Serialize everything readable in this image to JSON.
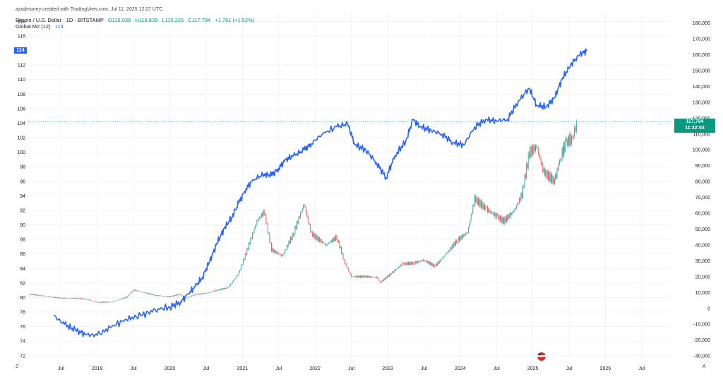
{
  "header": {
    "credit": "azadmoney created with TradingView.com, Jul 11, 2025 12:27 UTC",
    "symbol": "Bitcoin / U.S. Dollar · 1D · BITSTAMP",
    "open": "O116,038",
    "high": "H118,839",
    "low": "L115,226",
    "close": "C117,794",
    "change": "+1,761 (+1.52%)",
    "indicator": "Global M2 (12)",
    "indicator_value": "114"
  },
  "badges": {
    "m2_current": "114",
    "price_current": "117,794",
    "countdown": "11:32:03"
  },
  "corner_labels": {
    "left": "Z",
    "right": "A"
  },
  "colors": {
    "m2_line": "#2962ff",
    "candle_up": "#26a69a",
    "candle_down": "#ef5350",
    "grid": "#f0f3fa",
    "price_line": "#089981"
  },
  "chart_data": {
    "type": "line",
    "grid": true,
    "legend": "top-left",
    "x_axis": {
      "ticks": [
        "Jul",
        "2019",
        "Jul",
        "2020",
        "Jul",
        "2021",
        "Jul",
        "2022",
        "Jul",
        "2023",
        "Jul",
        "2024",
        "Jul",
        "2025",
        "Jul",
        "2026",
        "Jul"
      ],
      "tick_dates": [
        2018.5,
        2019.0,
        2019.5,
        2020.0,
        2020.5,
        2021.0,
        2021.5,
        2022.0,
        2022.5,
        2023.0,
        2023.5,
        2024.0,
        2024.5,
        2025.0,
        2025.5,
        2026.0,
        2026.5
      ],
      "range": [
        2018.05,
        2026.9
      ]
    },
    "left_axis": {
      "ticks": [
        "72",
        "74",
        "76",
        "78",
        "80",
        "82",
        "84",
        "86",
        "88",
        "90",
        "92",
        "94",
        "96",
        "98",
        "100",
        "102",
        "104",
        "106",
        "108",
        "110",
        "112",
        "116",
        "118"
      ],
      "tick_values": [
        72,
        74,
        76,
        78,
        80,
        82,
        84,
        86,
        88,
        90,
        92,
        94,
        96,
        98,
        100,
        102,
        104,
        106,
        108,
        110,
        112,
        116,
        118
      ],
      "range": [
        71.2,
        119.2
      ]
    },
    "right_axis": {
      "ticks": [
        "-30,000",
        "-20,000",
        "-10,000",
        "0",
        "10,000",
        "20,000",
        "30,000",
        "40,000",
        "50,000",
        "60,000",
        "70,000",
        "80,000",
        "90,000",
        "100,000",
        "110,000",
        "120,000",
        "130,000",
        "140,000",
        "150,000",
        "160,000",
        "170,000",
        "180,000"
      ],
      "tick_values": [
        -30000,
        -20000,
        -10000,
        0,
        10000,
        20000,
        30000,
        40000,
        50000,
        60000,
        70000,
        80000,
        90000,
        100000,
        110000,
        120000,
        130000,
        140000,
        150000,
        160000,
        170000,
        180000
      ],
      "range": [
        -33500,
        186500
      ]
    },
    "current_price": 117794,
    "series": [
      {
        "name": "Global M2 (12)",
        "axis": "left",
        "points": [
          [
            2018.4,
            77.5
          ],
          [
            2018.55,
            76.3
          ],
          [
            2018.7,
            75.5
          ],
          [
            2018.85,
            74.9
          ],
          [
            2019.0,
            74.8
          ],
          [
            2019.2,
            76.0
          ],
          [
            2019.4,
            77.0
          ],
          [
            2019.6,
            77.5
          ],
          [
            2019.8,
            78.3
          ],
          [
            2020.0,
            78.7
          ],
          [
            2020.15,
            79.4
          ],
          [
            2020.25,
            80.5
          ],
          [
            2020.35,
            81.5
          ],
          [
            2020.45,
            82.8
          ],
          [
            2020.55,
            85.0
          ],
          [
            2020.65,
            87.5
          ],
          [
            2020.75,
            89.5
          ],
          [
            2020.85,
            91.0
          ],
          [
            2020.95,
            93.0
          ],
          [
            2021.05,
            95.0
          ],
          [
            2021.15,
            96.2
          ],
          [
            2021.3,
            97.0
          ],
          [
            2021.4,
            96.8
          ],
          [
            2021.5,
            97.8
          ],
          [
            2021.6,
            99.0
          ],
          [
            2021.7,
            99.5
          ],
          [
            2021.85,
            100.3
          ],
          [
            2021.95,
            101.2
          ],
          [
            2022.1,
            102.5
          ],
          [
            2022.3,
            103.5
          ],
          [
            2022.45,
            103.9
          ],
          [
            2022.55,
            101.0
          ],
          [
            2022.7,
            100.3
          ],
          [
            2022.85,
            98.5
          ],
          [
            2022.98,
            96.5
          ],
          [
            2023.1,
            99.5
          ],
          [
            2023.25,
            101.5
          ],
          [
            2023.35,
            104.5
          ],
          [
            2023.45,
            103.5
          ],
          [
            2023.6,
            103.0
          ],
          [
            2023.75,
            102.5
          ],
          [
            2023.9,
            101.3
          ],
          [
            2024.05,
            101.0
          ],
          [
            2024.2,
            103.5
          ],
          [
            2024.35,
            104.5
          ],
          [
            2024.5,
            104.3
          ],
          [
            2024.65,
            104.5
          ],
          [
            2024.8,
            107.0
          ],
          [
            2024.95,
            108.8
          ],
          [
            2025.05,
            106.5
          ],
          [
            2025.18,
            106.2
          ],
          [
            2025.3,
            107.5
          ],
          [
            2025.4,
            110.0
          ],
          [
            2025.52,
            112.0
          ],
          [
            2025.65,
            113.5
          ],
          [
            2025.75,
            114.0
          ]
        ]
      },
      {
        "name": "Bitcoin / U.S. Dollar",
        "axis": "right",
        "points": [
          [
            2018.05,
            9000
          ],
          [
            2018.2,
            8200
          ],
          [
            2018.35,
            7200
          ],
          [
            2018.5,
            6500
          ],
          [
            2018.7,
            6400
          ],
          [
            2018.85,
            5800
          ],
          [
            2019.0,
            3800
          ],
          [
            2019.2,
            4000
          ],
          [
            2019.4,
            7000
          ],
          [
            2019.5,
            11500
          ],
          [
            2019.6,
            10500
          ],
          [
            2019.8,
            8200
          ],
          [
            2020.0,
            7400
          ],
          [
            2020.15,
            9000
          ],
          [
            2020.2,
            6000
          ],
          [
            2020.35,
            8800
          ],
          [
            2020.5,
            9500
          ],
          [
            2020.65,
            11500
          ],
          [
            2020.8,
            13000
          ],
          [
            2020.95,
            22000
          ],
          [
            2021.05,
            35000
          ],
          [
            2021.2,
            55000
          ],
          [
            2021.3,
            61000
          ],
          [
            2021.4,
            37000
          ],
          [
            2021.55,
            33000
          ],
          [
            2021.7,
            47000
          ],
          [
            2021.85,
            66000
          ],
          [
            2021.95,
            47000
          ],
          [
            2022.15,
            40000
          ],
          [
            2022.3,
            45000
          ],
          [
            2022.4,
            30000
          ],
          [
            2022.5,
            20000
          ],
          [
            2022.7,
            20000
          ],
          [
            2022.85,
            19500
          ],
          [
            2022.9,
            16500
          ],
          [
            2023.05,
            22000
          ],
          [
            2023.2,
            28000
          ],
          [
            2023.35,
            28500
          ],
          [
            2023.5,
            30500
          ],
          [
            2023.65,
            26500
          ],
          [
            2023.8,
            34000
          ],
          [
            2023.95,
            42500
          ],
          [
            2024.1,
            48000
          ],
          [
            2024.2,
            69000
          ],
          [
            2024.35,
            63000
          ],
          [
            2024.5,
            58000
          ],
          [
            2024.6,
            55000
          ],
          [
            2024.75,
            62000
          ],
          [
            2024.85,
            72000
          ],
          [
            2024.95,
            98000
          ],
          [
            2025.05,
            102000
          ],
          [
            2025.15,
            86000
          ],
          [
            2025.3,
            80000
          ],
          [
            2025.38,
            95000
          ],
          [
            2025.45,
            104000
          ],
          [
            2025.52,
            107000
          ],
          [
            2025.56,
            108500
          ],
          [
            2025.6,
            117794
          ]
        ]
      }
    ]
  }
}
